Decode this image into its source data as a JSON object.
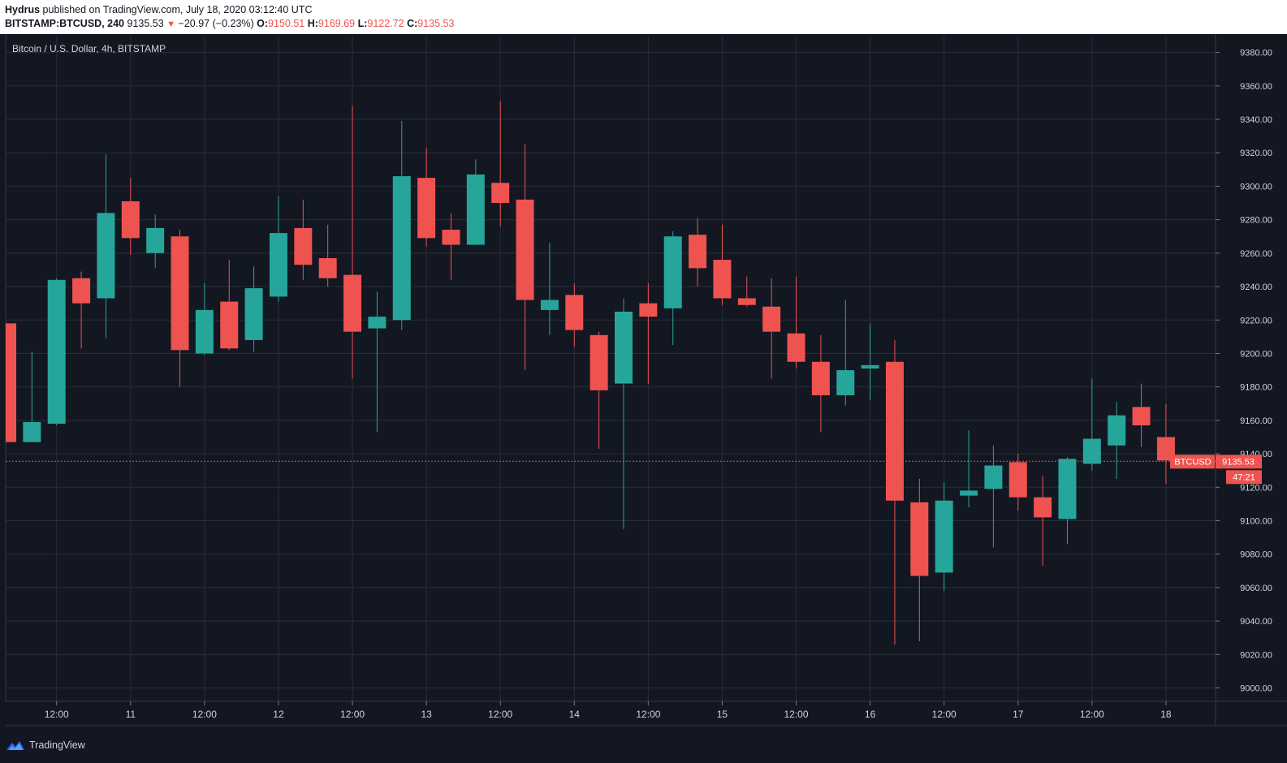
{
  "header": {
    "author": "Hydrus",
    "published_text": " published on TradingView.com, July 18, 2020 03:12:40 UTC",
    "symbol_interval": "BITSTAMP:BTCUSD, 240",
    "last_price": "9135.53",
    "change_text": "−20.97 (−0.23%)",
    "o_label": "O:",
    "o_value": "9150.51",
    "h_label": "H:",
    "h_value": "9169.69",
    "l_label": "L:",
    "l_value": "9122.72",
    "c_label": "C:",
    "c_value": "9135.53"
  },
  "chart_title": "Bitcoin / U.S. Dollar, 4h, BITSTAMP",
  "price_tag": {
    "label": "BTCUSD",
    "price": "9135.53",
    "countdown": "47:21"
  },
  "footer": {
    "brand": "TradingView"
  },
  "colors": {
    "background": "#131722",
    "grid": "#2a2e39",
    "up": "#26a69a",
    "down": "#ef5350",
    "axis_text": "#d1d4dc"
  },
  "chart_data": {
    "type": "candlestick",
    "title": "Bitcoin / U.S. Dollar, 4h, BITSTAMP",
    "timeframe": "4h",
    "ylim": [
      8992,
      9390
    ],
    "grid": true,
    "y_ticks": [
      9000,
      9020,
      9040,
      9060,
      9080,
      9100,
      9120,
      9140,
      9160,
      9180,
      9200,
      9220,
      9240,
      9260,
      9280,
      9300,
      9320,
      9340,
      9360,
      9380
    ],
    "y_tick_labels": [
      "9000.00",
      "9020.00",
      "9040.00",
      "9060.00",
      "9080.00",
      "9100.00",
      "9120.00",
      "9140.00",
      "9160.00",
      "9180.00",
      "9200.00",
      "9220.00",
      "9240.00",
      "9260.00",
      "9280.00",
      "9300.00",
      "9320.00",
      "9340.00",
      "9360.00",
      "9380.00"
    ],
    "x_tick_labels": [
      {
        "label": "12:00",
        "bar": 2
      },
      {
        "label": "11",
        "bar": 5
      },
      {
        "label": "12:00",
        "bar": 8
      },
      {
        "label": "12",
        "bar": 11
      },
      {
        "label": "12:00",
        "bar": 14
      },
      {
        "label": "13",
        "bar": 17
      },
      {
        "label": "12:00",
        "bar": 20
      },
      {
        "label": "14",
        "bar": 23
      },
      {
        "label": "12:00",
        "bar": 26
      },
      {
        "label": "15",
        "bar": 29
      },
      {
        "label": "12:00",
        "bar": 32
      },
      {
        "label": "16",
        "bar": 35
      },
      {
        "label": "12:00",
        "bar": 38
      },
      {
        "label": "17",
        "bar": 41
      },
      {
        "label": "12:00",
        "bar": 44
      },
      {
        "label": "18",
        "bar": 47
      }
    ],
    "candles": [
      [
        9218,
        9218,
        9147,
        9147
      ],
      [
        9147,
        9201,
        9147,
        9159
      ],
      [
        9158,
        9245,
        9157,
        9244
      ],
      [
        9245,
        9249,
        9203,
        9230
      ],
      [
        9233,
        9319,
        9209,
        9284
      ],
      [
        9291,
        9305,
        9259,
        9269
      ],
      [
        9260,
        9283,
        9251,
        9275
      ],
      [
        9270,
        9274,
        9180,
        9202
      ],
      [
        9200,
        9242,
        9199,
        9226
      ],
      [
        9231,
        9256,
        9202,
        9203
      ],
      [
        9208,
        9252,
        9201,
        9239
      ],
      [
        9234,
        9294,
        9231,
        9272
      ],
      [
        9275,
        9292,
        9244,
        9253
      ],
      [
        9257,
        9277,
        9240,
        9245
      ],
      [
        9247,
        9348,
        9185,
        9213
      ],
      [
        9215,
        9237,
        9153,
        9222
      ],
      [
        9220,
        9339,
        9214,
        9306
      ],
      [
        9305,
        9323,
        9264,
        9269
      ],
      [
        9274,
        9284,
        9244,
        9265
      ],
      [
        9265,
        9316,
        9265,
        9307
      ],
      [
        9302,
        9351,
        9276,
        9290
      ],
      [
        9292,
        9325,
        9190,
        9232
      ],
      [
        9226,
        9266,
        9211,
        9232
      ],
      [
        9235,
        9242,
        9204,
        9214
      ],
      [
        9211,
        9213,
        9143,
        9178
      ],
      [
        9182,
        9233,
        9095,
        9225
      ],
      [
        9230,
        9242,
        9182,
        9222
      ],
      [
        9227,
        9273,
        9205,
        9270
      ],
      [
        9271,
        9281,
        9240,
        9251
      ],
      [
        9256,
        9277,
        9229,
        9233
      ],
      [
        9233,
        9246,
        9228,
        9229
      ],
      [
        9228,
        9245,
        9185,
        9213
      ],
      [
        9212,
        9246,
        9191,
        9195
      ],
      [
        9195,
        9211,
        9153,
        9175
      ],
      [
        9175,
        9232,
        9169,
        9190
      ],
      [
        9191,
        9218,
        9172,
        9193
      ],
      [
        9195,
        9208,
        9026,
        9112
      ],
      [
        9111,
        9125,
        9028,
        9067
      ],
      [
        9069,
        9123,
        9058,
        9112
      ],
      [
        9115,
        9154,
        9108,
        9118
      ],
      [
        9119,
        9145,
        9084,
        9133
      ],
      [
        9135,
        9140,
        9106,
        9114
      ],
      [
        9114,
        9127,
        9073,
        9102
      ],
      [
        9101,
        9138,
        9086,
        9137
      ],
      [
        9134,
        9185,
        9130,
        9149
      ],
      [
        9145,
        9171,
        9125,
        9163
      ],
      [
        9168,
        9182,
        9144,
        9157
      ],
      [
        9150,
        9170,
        9122,
        9136
      ]
    ],
    "last_price": 9135.53
  }
}
